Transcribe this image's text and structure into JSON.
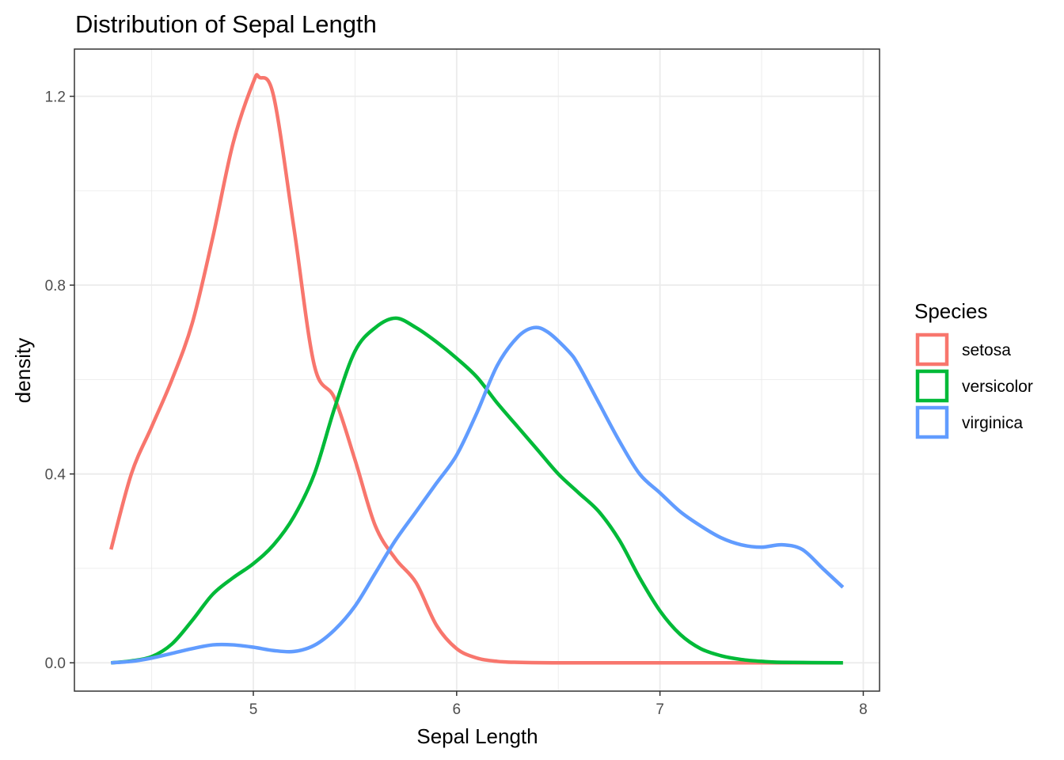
{
  "chart_data": {
    "type": "line",
    "title": "Distribution of Sepal Length",
    "xlabel": "Sepal Length",
    "ylabel": "density",
    "xlim": [
      4.12,
      8.08
    ],
    "ylim": [
      -0.06,
      1.3
    ],
    "x_ticks": [
      5,
      6,
      7,
      8
    ],
    "x_tick_labels": [
      "5",
      "6",
      "7",
      "8"
    ],
    "y_ticks": [
      0.0,
      0.4,
      0.8,
      1.2
    ],
    "y_tick_labels": [
      "0.0",
      "0.4",
      "0.8",
      "1.2"
    ],
    "grid": true,
    "legend": {
      "title": "Species",
      "position": "right"
    },
    "series": [
      {
        "name": "setosa",
        "color": "#F8766D",
        "x": [
          4.3,
          4.4,
          4.5,
          4.6,
          4.7,
          4.8,
          4.9,
          5.0,
          5.03,
          5.1,
          5.2,
          5.3,
          5.4,
          5.5,
          5.6,
          5.7,
          5.8,
          5.9,
          6.0,
          6.1,
          6.2,
          6.3,
          6.5,
          7.0,
          7.5,
          7.9
        ],
        "y": [
          0.24,
          0.4,
          0.5,
          0.6,
          0.72,
          0.9,
          1.1,
          1.23,
          1.24,
          1.2,
          0.92,
          0.63,
          0.56,
          0.43,
          0.29,
          0.22,
          0.17,
          0.08,
          0.03,
          0.01,
          0.003,
          0.001,
          0.0,
          0.0,
          0.0,
          0.0
        ]
      },
      {
        "name": "versicolor",
        "color": "#00BA38",
        "x": [
          4.3,
          4.4,
          4.5,
          4.6,
          4.7,
          4.8,
          4.9,
          5.0,
          5.1,
          5.2,
          5.3,
          5.4,
          5.5,
          5.6,
          5.7,
          5.8,
          5.9,
          6.0,
          6.1,
          6.2,
          6.3,
          6.4,
          6.5,
          6.6,
          6.7,
          6.8,
          6.9,
          7.0,
          7.1,
          7.2,
          7.3,
          7.4,
          7.5,
          7.6,
          7.9
        ],
        "y": [
          0.0,
          0.004,
          0.013,
          0.04,
          0.09,
          0.145,
          0.18,
          0.21,
          0.25,
          0.31,
          0.4,
          0.54,
          0.66,
          0.71,
          0.73,
          0.71,
          0.68,
          0.645,
          0.605,
          0.55,
          0.5,
          0.45,
          0.4,
          0.36,
          0.32,
          0.26,
          0.18,
          0.11,
          0.06,
          0.03,
          0.015,
          0.007,
          0.003,
          0.001,
          0.0
        ]
      },
      {
        "name": "virginica",
        "color": "#619CFF",
        "x": [
          4.3,
          4.4,
          4.5,
          4.6,
          4.7,
          4.8,
          4.9,
          5.0,
          5.1,
          5.2,
          5.3,
          5.4,
          5.5,
          5.6,
          5.7,
          5.8,
          5.9,
          6.0,
          6.1,
          6.2,
          6.3,
          6.38,
          6.45,
          6.55,
          6.6,
          6.7,
          6.8,
          6.9,
          7.0,
          7.1,
          7.2,
          7.3,
          7.4,
          7.5,
          7.6,
          7.7,
          7.8,
          7.9
        ],
        "y": [
          0.0,
          0.003,
          0.01,
          0.02,
          0.03,
          0.038,
          0.038,
          0.033,
          0.026,
          0.024,
          0.037,
          0.07,
          0.12,
          0.19,
          0.26,
          0.32,
          0.38,
          0.44,
          0.53,
          0.63,
          0.69,
          0.71,
          0.7,
          0.66,
          0.63,
          0.55,
          0.47,
          0.4,
          0.36,
          0.32,
          0.29,
          0.265,
          0.25,
          0.245,
          0.25,
          0.24,
          0.2,
          0.16
        ]
      }
    ]
  }
}
